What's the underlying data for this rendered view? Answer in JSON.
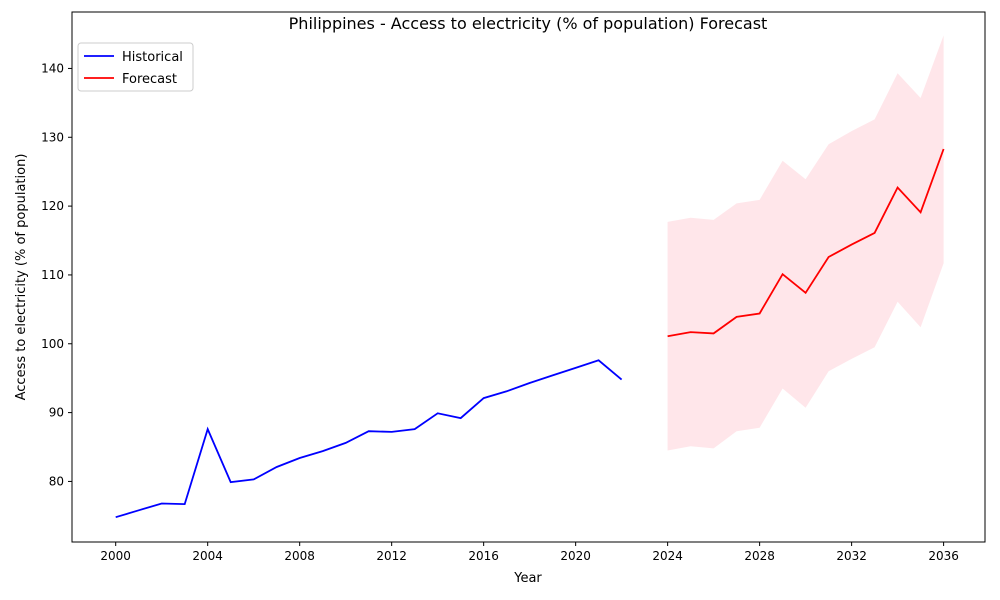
{
  "chart_data": {
    "type": "line",
    "title": "Philippines - Access to electricity (% of population) Forecast",
    "xlabel": "Year",
    "ylabel": "Access to electricity (% of population)",
    "xlim": [
      1998.1,
      2037.8
    ],
    "ylim": [
      71.2,
      148.2
    ],
    "x_ticks": [
      2000,
      2004,
      2008,
      2012,
      2016,
      2020,
      2024,
      2028,
      2032,
      2036
    ],
    "y_ticks": [
      80,
      90,
      100,
      110,
      120,
      130,
      140
    ],
    "grid": false,
    "legend_position": "top-left",
    "series": [
      {
        "name": "Historical",
        "color": "#0000ff",
        "x": [
          2000,
          2001,
          2002,
          2003,
          2004,
          2005,
          2006,
          2007,
          2008,
          2009,
          2010,
          2011,
          2012,
          2013,
          2014,
          2015,
          2016,
          2017,
          2018,
          2019,
          2020,
          2021,
          2022
        ],
        "y": [
          74.8,
          75.8,
          76.8,
          76.7,
          87.6,
          79.9,
          80.3,
          82.1,
          83.4,
          84.4,
          85.6,
          87.3,
          87.2,
          87.6,
          89.9,
          89.2,
          92.1,
          93.1,
          94.3,
          95.4,
          96.5,
          97.6,
          94.8
        ]
      },
      {
        "name": "Forecast",
        "color": "#ff0000",
        "x": [
          2024,
          2025,
          2026,
          2027,
          2028,
          2029,
          2030,
          2031,
          2032,
          2033,
          2034,
          2035,
          2036
        ],
        "y": [
          101.1,
          101.7,
          101.5,
          103.9,
          104.4,
          110.1,
          107.4,
          112.6,
          114.4,
          116.1,
          122.7,
          119.1,
          128.3
        ]
      }
    ],
    "confidence_band": {
      "color": "#ffc0cb",
      "x": [
        2024,
        2025,
        2026,
        2027,
        2028,
        2029,
        2030,
        2031,
        2032,
        2033,
        2034,
        2035,
        2036
      ],
      "upper": [
        117.7,
        118.3,
        118.0,
        120.4,
        120.9,
        126.6,
        123.9,
        129.0,
        130.9,
        132.6,
        139.3,
        135.7,
        144.8
      ],
      "lower": [
        84.5,
        85.1,
        84.8,
        87.3,
        87.8,
        93.5,
        90.7,
        96.0,
        97.8,
        99.5,
        106.1,
        102.4,
        111.7
      ]
    }
  }
}
